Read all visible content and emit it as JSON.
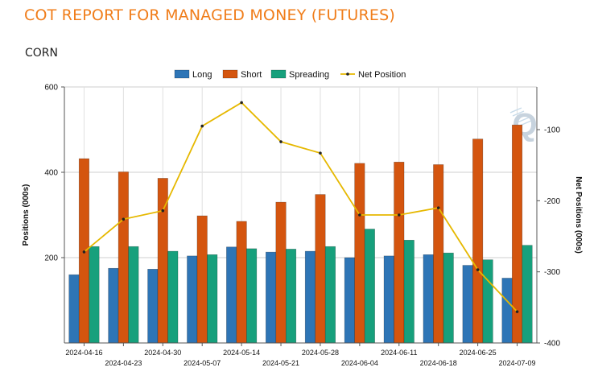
{
  "page": {
    "title": "COT REPORT FOR MANAGED MONEY (FUTURES)",
    "subtitle": "CORN",
    "watermark": "Q"
  },
  "colors": {
    "title": "#f07d1a",
    "long": "#2e75b6",
    "short": "#d4550f",
    "spreading": "#17a07c",
    "net": "#e6b800"
  },
  "chart_data": {
    "type": "bar",
    "categories": [
      "2024-04-16",
      "2024-04-23",
      "2024-04-30",
      "2024-05-07",
      "2024-05-14",
      "2024-05-21",
      "2024-05-28",
      "2024-06-04",
      "2024-06-11",
      "2024-06-18",
      "2024-06-25",
      "2024-07-09"
    ],
    "series": [
      {
        "name": "Long",
        "key": "long",
        "values": [
          160,
          175,
          173,
          204,
          225,
          213,
          215,
          200,
          204,
          207,
          182,
          152
        ]
      },
      {
        "name": "Short",
        "key": "short",
        "values": [
          432,
          401,
          386,
          298,
          285,
          330,
          348,
          421,
          424,
          418,
          478,
          511
        ]
      },
      {
        "name": "Spreading",
        "key": "spreading",
        "values": [
          226,
          226,
          215,
          207,
          221,
          220,
          226,
          267,
          241,
          211,
          195,
          229
        ]
      },
      {
        "name": "Net Position",
        "key": "net",
        "type": "line",
        "axis": "right",
        "values": [
          -272,
          -226,
          -214,
          -95,
          -62,
          -117,
          -133,
          -220,
          -220,
          -210,
          -297,
          -356
        ]
      }
    ],
    "ylabel": "Positions (000s)",
    "ylabel_right": "Net Positions (000s)",
    "ylim": [
      0,
      600
    ],
    "yticks": [
      200,
      400,
      600
    ],
    "ylim_right": [
      -400,
      -40
    ],
    "yticks_right": [
      -100,
      -200,
      -300,
      -400
    ],
    "legend": "top-center",
    "grid": true
  }
}
